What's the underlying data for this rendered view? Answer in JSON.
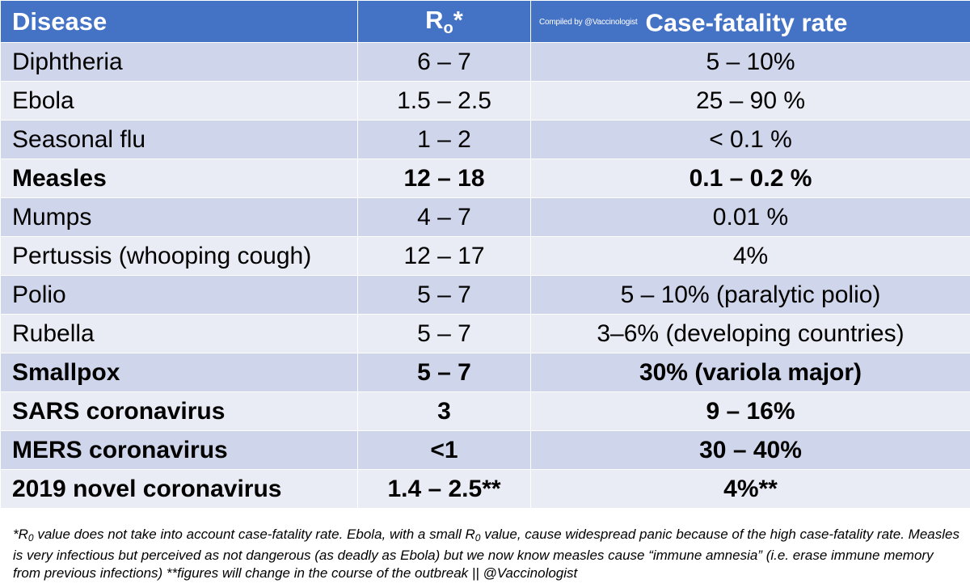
{
  "header": {
    "disease": "Disease",
    "r0_main": "R",
    "r0_sub": "o",
    "r0_star": "*",
    "credit": "Compiled by @Vaccinologist",
    "cfr": "Case-fatality rate"
  },
  "rows": [
    {
      "disease": "Diphtheria",
      "r0": "6 – 7",
      "cfr": "5 – 10%",
      "bold": false
    },
    {
      "disease": "Ebola",
      "r0": "1.5 – 2.5",
      "cfr": "25 – 90 %",
      "bold": false
    },
    {
      "disease": "Seasonal flu",
      "r0": "1 – 2",
      "cfr": "< 0.1 %",
      "bold": false
    },
    {
      "disease": "Measles",
      "r0": "12 – 18",
      "cfr": "0.1 – 0.2 %",
      "bold": true
    },
    {
      "disease": "Mumps",
      "r0": "4 – 7",
      "cfr": "0.01 %",
      "bold": false
    },
    {
      "disease": "Pertussis (whooping cough)",
      "r0": "12 – 17",
      "cfr": "4%",
      "bold": false
    },
    {
      "disease": "Polio",
      "r0": "5 – 7",
      "cfr": "5 – 10% (paralytic polio)",
      "bold": false
    },
    {
      "disease": "Rubella",
      "r0": "5 – 7",
      "cfr": "3–6% (developing countries)",
      "bold": false
    },
    {
      "disease": "Smallpox",
      "r0": "5 – 7",
      "cfr": "30% (variola major)",
      "bold": true
    },
    {
      "disease": "SARS coronavirus",
      "r0": "3",
      "cfr": "9 – 16%",
      "bold": true
    },
    {
      "disease": "MERS coronavirus",
      "r0": "<1",
      "cfr": "30 – 40%",
      "bold": true
    },
    {
      "disease": "2019 novel coronavirus",
      "r0": "1.4 – 2.5**",
      "cfr": "4%**",
      "bold": true
    }
  ],
  "footnote": {
    "p1": "*R",
    "sub1": "0",
    "p2": " value does not take into account case-fatality rate. Ebola, with a small R",
    "sub2": "0",
    "p3": " value, cause widespread panic because of the high case-fatality rate. Measles is very infectious but perceived as not dangerous (as deadly as Ebola) but we now know measles cause “immune amnesia” (i.e. erase immune memory from previous infections) **figures will change in the course of the outbreak || @Vaccinologist"
  }
}
